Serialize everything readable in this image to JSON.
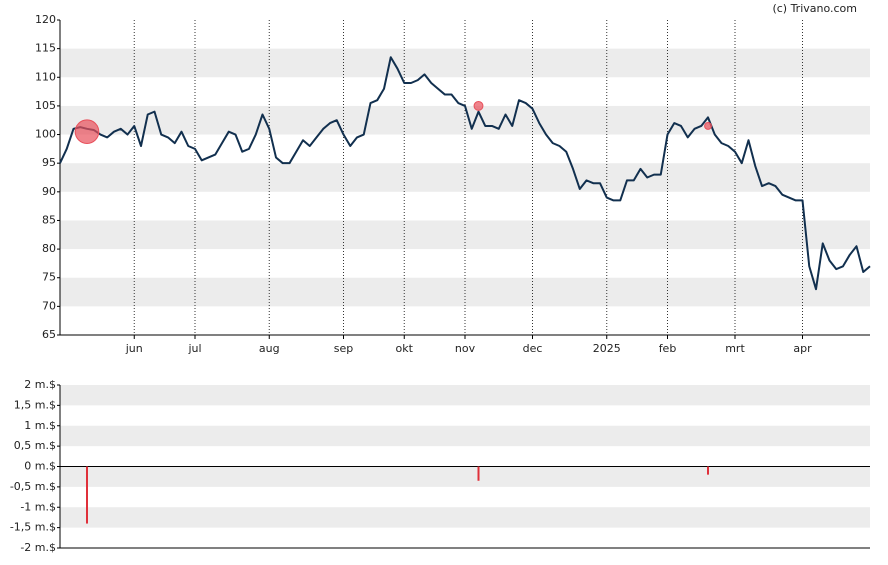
{
  "credit": "(c) Trivano.com",
  "chart_data": [
    {
      "type": "line",
      "categories": [
        null,
        null,
        null,
        null,
        null,
        null,
        null,
        null,
        null,
        null,
        null,
        "jun",
        null,
        null,
        null,
        null,
        null,
        null,
        null,
        null,
        "jul",
        null,
        null,
        null,
        null,
        null,
        null,
        null,
        null,
        null,
        null,
        "aug",
        null,
        null,
        null,
        null,
        null,
        null,
        null,
        null,
        null,
        null,
        "sep",
        null,
        null,
        null,
        null,
        null,
        null,
        null,
        null,
        "okt",
        null,
        null,
        null,
        null,
        null,
        null,
        null,
        null,
        "nov",
        null,
        null,
        null,
        null,
        null,
        null,
        null,
        null,
        null,
        "dec",
        null,
        null,
        null,
        null,
        null,
        null,
        null,
        null,
        null,
        null,
        "2025",
        null,
        null,
        null,
        null,
        null,
        null,
        null,
        null,
        "feb",
        null,
        null,
        null,
        null,
        null,
        null,
        null,
        null,
        null,
        "mrt",
        null,
        null,
        null,
        null,
        null,
        null,
        null,
        null,
        null,
        "apr",
        null,
        null,
        null,
        null,
        null,
        null,
        null,
        null,
        null,
        null
      ],
      "series": [
        {
          "color": "#12304f",
          "values": [
            95,
            97.5,
            101,
            101.3,
            101,
            100.8,
            100,
            99.5,
            100.5,
            101,
            100,
            101.5,
            98,
            103.5,
            104,
            100,
            99.5,
            98.5,
            100.5,
            98,
            97.5,
            95.5,
            96,
            96.5,
            98.5,
            100.5,
            100,
            97,
            97.5,
            100,
            103.5,
            101,
            96,
            95,
            95,
            97,
            99,
            98,
            99.5,
            101,
            102,
            102.5,
            100,
            98,
            99.5,
            100,
            105.5,
            106,
            108,
            113.5,
            111.5,
            109,
            109,
            109.5,
            110.5,
            109,
            108,
            107,
            107,
            105.5,
            105,
            101,
            104,
            101.5,
            101.5,
            101,
            103.5,
            101.5,
            106,
            105.5,
            104.5,
            102,
            100,
            98.5,
            98,
            97,
            94,
            90.5,
            92,
            91.5,
            91.5,
            89,
            88.5,
            88.5,
            92,
            92,
            94,
            92.5,
            93,
            93,
            100,
            102,
            101.5,
            99.5,
            101,
            101.5,
            103,
            100,
            98.5,
            98,
            97,
            95,
            99,
            94.5,
            91,
            91.5,
            91,
            89.5,
            89,
            88.5,
            88.5,
            77,
            73,
            81,
            78,
            76.5,
            77,
            79,
            80.5,
            76,
            77
          ]
        },
        {
          "type": "scatter",
          "color": "#e8505b",
          "values": [
            null,
            null,
            null,
            null,
            100.5,
            null,
            null,
            null,
            null,
            null,
            null,
            null,
            null,
            null,
            null,
            null,
            null,
            null,
            null,
            null,
            null,
            null,
            null,
            null,
            null,
            null,
            null,
            null,
            null,
            null,
            null,
            null,
            null,
            null,
            null,
            null,
            null,
            null,
            null,
            null,
            null,
            null,
            null,
            null,
            null,
            null,
            null,
            null,
            null,
            null,
            null,
            null,
            null,
            null,
            null,
            null,
            null,
            null,
            null,
            null,
            null,
            null,
            105,
            null,
            null,
            null,
            null,
            null,
            null,
            null,
            null,
            null,
            null,
            null,
            null,
            null,
            null,
            null,
            null,
            null,
            null,
            null,
            null,
            null,
            null,
            null,
            null,
            null,
            null,
            null,
            null,
            null,
            null,
            null,
            null,
            null,
            101.5,
            null,
            null,
            null,
            null,
            null,
            null,
            null,
            null,
            null,
            null,
            null,
            null,
            null,
            null,
            null,
            null,
            null,
            null,
            null,
            null,
            null,
            null,
            null,
            null
          ]
        }
      ],
      "ylim": [
        65,
        120
      ],
      "yticks": [
        65,
        70,
        75,
        80,
        85,
        90,
        95,
        100,
        105,
        110,
        115,
        120
      ],
      "grid": true
    },
    {
      "type": "bar",
      "color": "#e0303a",
      "values": [
        null,
        null,
        null,
        null,
        -1.4,
        null,
        null,
        null,
        null,
        null,
        null,
        null,
        null,
        null,
        null,
        null,
        null,
        null,
        null,
        null,
        null,
        null,
        null,
        null,
        null,
        null,
        null,
        null,
        null,
        null,
        null,
        null,
        null,
        null,
        null,
        null,
        null,
        null,
        null,
        null,
        null,
        null,
        null,
        null,
        null,
        null,
        null,
        null,
        null,
        null,
        null,
        null,
        null,
        null,
        null,
        null,
        null,
        null,
        null,
        null,
        null,
        null,
        -0.35,
        null,
        null,
        null,
        null,
        null,
        null,
        null,
        null,
        null,
        null,
        null,
        null,
        null,
        null,
        null,
        null,
        null,
        null,
        null,
        null,
        null,
        null,
        null,
        null,
        null,
        null,
        null,
        null,
        null,
        null,
        null,
        null,
        null,
        -0.2,
        null,
        null,
        null,
        null,
        null,
        null,
        null,
        null,
        null,
        null,
        null,
        null,
        null,
        null,
        null,
        null,
        null,
        null,
        null,
        null,
        null,
        null,
        null,
        null
      ],
      "ylim": [
        -2,
        2
      ],
      "yticks": [
        {
          "value": -2,
          "label": "-2 m.$"
        },
        {
          "value": -1.5,
          "label": "-1,5 m.$"
        },
        {
          "value": -1,
          "label": "-1 m.$"
        },
        {
          "value": -0.5,
          "label": "-0,5 m.$"
        },
        {
          "value": 0,
          "label": "0 m.$"
        },
        {
          "value": 0.5,
          "label": "0,5 m.$"
        },
        {
          "value": 1,
          "label": "1 m.$"
        },
        {
          "value": 1.5,
          "label": "1,5 m.$"
        },
        {
          "value": 2,
          "label": "2 m.$"
        }
      ]
    }
  ]
}
